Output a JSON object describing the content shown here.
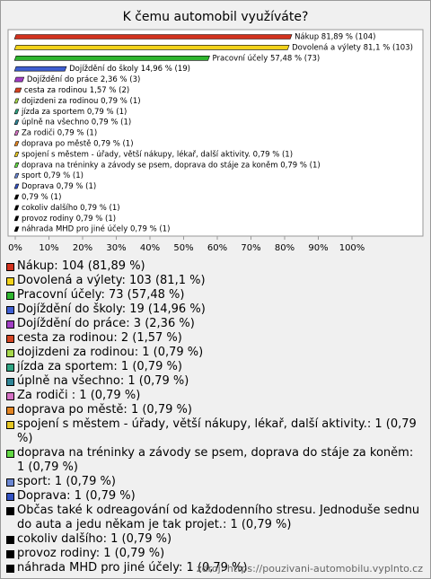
{
  "chart_data": {
    "type": "bar",
    "orientation": "horizontal",
    "title": "K čemu automobil využíváte?",
    "values": [
      81.89,
      81.1,
      57.48,
      14.96,
      2.36,
      1.57,
      0.79,
      0.79,
      0.79,
      0.79,
      0.79,
      0.79,
      0.79,
      0.79,
      0.79,
      0.79,
      0.79,
      0.79,
      0.79
    ],
    "value_labels": [
      "Nákup 81,89 % (104)",
      "Dovolená a výlety 81,1 % (103)",
      "Pracovní účely 57,48 % (73)",
      "Dojíždění do školy 14,96 % (19)",
      "Dojíždění do práce 2,36 % (3)",
      "cesta za rodinou 1,57 % (2)",
      "dojizdeni za rodinou 0,79 % (1)",
      "jízda za sportem 0,79 % (1)",
      "úplně na všechno 0,79 % (1)",
      "Za rodiči  0,79 % (1)",
      "doprava po městě 0,79 % (1)",
      "spojení s městem - úřady, větší nákupy, lékař, další aktivity. 0,79 % (1)",
      "doprava na tréninky a závody se psem, doprava do stáje za koněm 0,79 % (1)",
      "sport 0,79 % (1)",
      "Doprava 0,79 % (1)",
      "0,79 % (1)",
      "cokoliv dalšího 0,79 % (1)",
      "provoz rodiny 0,79 % (1)",
      "náhrada MHD pro jiné účely 0,79 % (1)"
    ],
    "legend_labels": [
      "Nákup: 104 (81,89 %)",
      "Dovolená a výlety: 103 (81,1 %)",
      "Pracovní účely: 73 (57,48 %)",
      "Dojíždění do školy: 19 (14,96 %)",
      "Dojíždění do práce: 3 (2,36 %)",
      "cesta za rodinou: 2 (1,57 %)",
      "dojizdeni za rodinou: 1 (0,79 %)",
      "jízda za sportem: 1 (0,79 %)",
      "úplně na všechno: 1 (0,79 %)",
      "Za rodiči : 1 (0,79 %)",
      "doprava po městě: 1 (0,79 %)",
      "spojení s městem - úřady, větší nákupy, lékař, další aktivity.: 1 (0,79 %)",
      "doprava na tréninky a závody se psem, doprava do stáje za koněm: 1 (0,79 %)",
      "sport: 1 (0,79 %)",
      "Doprava: 1 (0,79 %)",
      "Občas také k odreagování od každodenního stresu. Jednoduše sednu do auta a jedu někam je tak projet.: 1 (0,79 %)",
      "cokoliv dalšího: 1 (0,79 %)",
      "provoz rodiny: 1 (0,79 %)",
      "náhrada MHD pro jiné účely: 1 (0,79 %)"
    ],
    "colors": [
      "#d2321e",
      "#f2d21a",
      "#2fb52f",
      "#3f5fd3",
      "#a23ec4",
      "#d34422",
      "#a6d84a",
      "#2fa583",
      "#2f8597",
      "#d571c4",
      "#e38523",
      "#e5c624",
      "#62d844",
      "#6a86d2",
      "#3352c2",
      "#000000",
      "#000000",
      "#000000",
      "#000000"
    ],
    "xlim": [
      0,
      100
    ],
    "xticks": [
      {
        "value": 0,
        "label": "0%"
      },
      {
        "value": 10,
        "label": "10%"
      },
      {
        "value": 20,
        "label": "20%"
      },
      {
        "value": 30,
        "label": "30%"
      },
      {
        "value": 40,
        "label": "40%"
      },
      {
        "value": 50,
        "label": "50%"
      },
      {
        "value": 60,
        "label": "60%"
      },
      {
        "value": 70,
        "label": "70%"
      },
      {
        "value": 80,
        "label": "80%"
      },
      {
        "value": 90,
        "label": "90%"
      },
      {
        "value": 100,
        "label": "100%"
      }
    ],
    "source": "zdroj: https://pouzivani-automobilu.vyplnto.cz"
  }
}
